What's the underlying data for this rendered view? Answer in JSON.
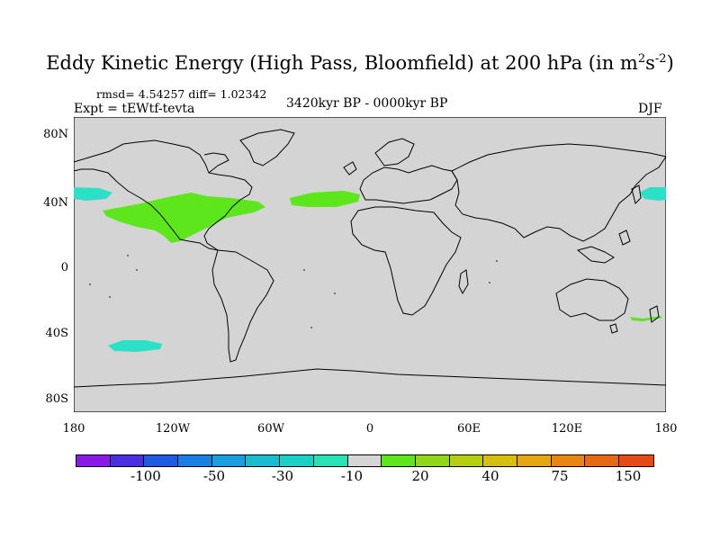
{
  "title": {
    "main": "Eddy Kinetic Energy (High Pass, Bloomfield) at 200 hPa (in m",
    "sup1": "2",
    "mid": "s",
    "sup2": "-2",
    "close": ")"
  },
  "stats": "rmsd= 4.54257 diff= 1.02342",
  "expt": "Expt = tEWtf-tevta",
  "period": "3420kyr BP - 0000kyr BP",
  "season": "DJF",
  "lat_ticks": [
    "80N",
    "40N",
    "0",
    "40S",
    "80S"
  ],
  "lon_ticks": [
    "180",
    "120W",
    "60W",
    "0",
    "60E",
    "120E",
    "180"
  ],
  "colorbar": {
    "colors": [
      "#8a1ae6",
      "#4b2fe0",
      "#1f5ae3",
      "#1a7fe0",
      "#199fdd",
      "#19bccf",
      "#1bd0c6",
      "#2ae0b5",
      "#d6d6d6",
      "#5de61b",
      "#8fd61b",
      "#b6cf10",
      "#d6bf10",
      "#e6a60f",
      "#e88612",
      "#e66a14",
      "#e64a16"
    ],
    "labels": [
      "-100",
      "-50",
      "-30",
      "-10",
      "20",
      "40",
      "75",
      "150"
    ]
  },
  "colors": {
    "ocean_land": "#d4d4d4",
    "positive": "#5de61b",
    "negative": "#2ae0c6"
  }
}
